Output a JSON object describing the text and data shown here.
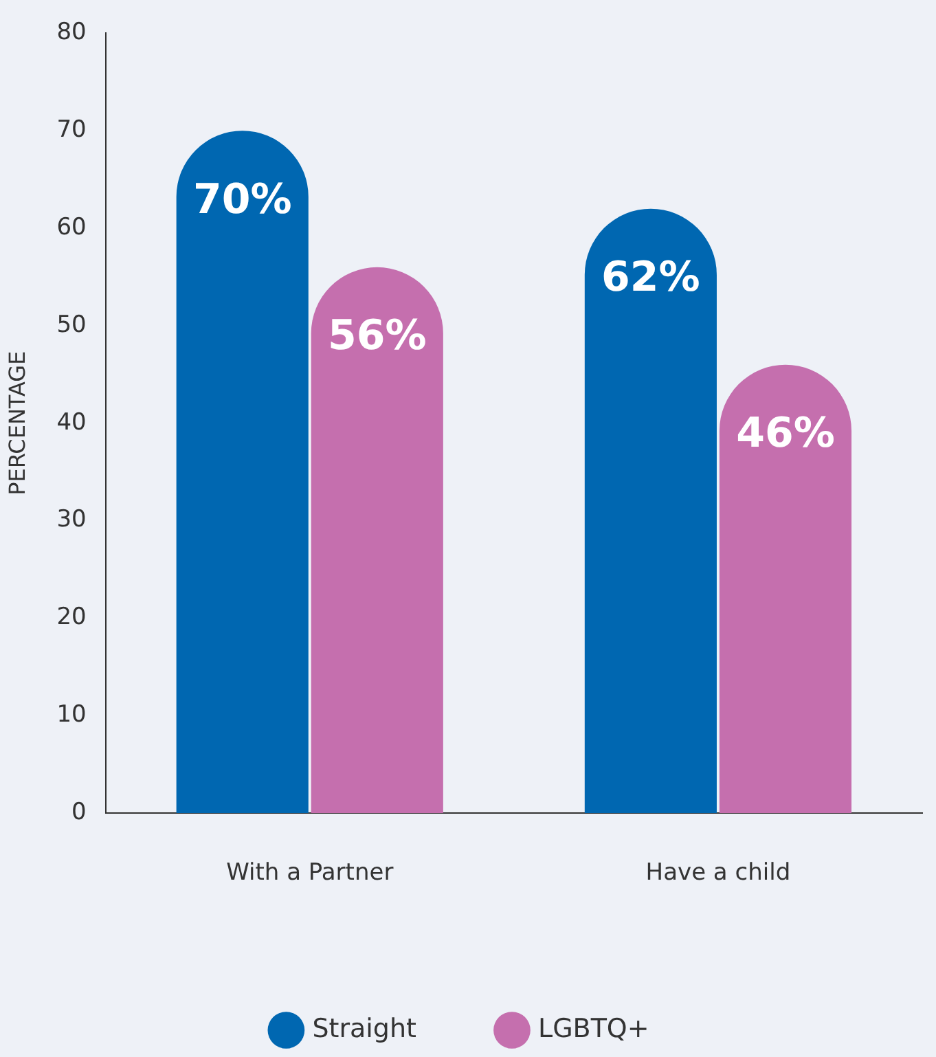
{
  "chart_data": {
    "type": "bar",
    "ylabel": "PERCENTAGE",
    "categories": [
      "With a Partner",
      "Have a child"
    ],
    "series": [
      {
        "name": "Straight",
        "color": "#0067b1",
        "values": [
          70,
          62
        ],
        "value_labels": [
          "70%",
          "62%"
        ]
      },
      {
        "name": "LGBTQ+",
        "color": "#c56fae",
        "values": [
          56,
          46
        ],
        "value_labels": [
          "56%",
          "46%"
        ]
      }
    ],
    "ylim": [
      0,
      80
    ],
    "yticks": [
      0,
      10,
      20,
      30,
      40,
      50,
      60,
      70,
      80
    ],
    "grid": false,
    "legend": "bottom"
  }
}
